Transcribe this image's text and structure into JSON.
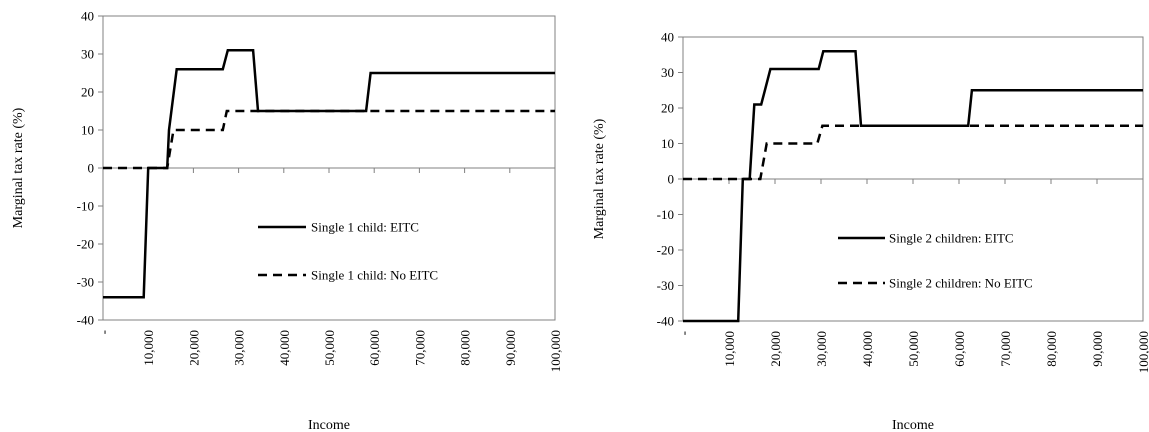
{
  "chart_data": [
    {
      "type": "line",
      "title": "",
      "xlabel": "Income",
      "ylabel": "Marginal tax rate (%)",
      "xlim": [
        0,
        100000
      ],
      "ylim": [
        -40,
        40
      ],
      "x_ticks": [
        0,
        10000,
        20000,
        30000,
        40000,
        50000,
        60000,
        70000,
        80000,
        90000,
        100000
      ],
      "x_tick_labels": [
        "-",
        "10,000",
        "20,000",
        "30,000",
        "40,000",
        "50,000",
        "60,000",
        "70,000",
        "80,000",
        "90,000",
        "100,000"
      ],
      "y_ticks": [
        40,
        30,
        20,
        10,
        0,
        -10,
        -20,
        -30,
        -40
      ],
      "y_tick_labels": [
        "40",
        "30",
        "20",
        "10",
        "0",
        "-10",
        "-20",
        "-30",
        "-40"
      ],
      "grid": false,
      "legend_position": "center-right",
      "series": [
        {
          "name": "Single 1 child: EITC",
          "style": "solid",
          "x": [
            0,
            9000,
            10000,
            14200,
            14600,
            16300,
            26500,
            27600,
            33200,
            34300,
            58200,
            59200,
            100000
          ],
          "y": [
            -34,
            -34,
            0,
            0,
            10,
            26,
            26,
            31,
            31,
            15,
            15,
            25,
            25
          ]
        },
        {
          "name": "Single 1 child: No EITC",
          "style": "dashed",
          "x": [
            0,
            8500,
            9200,
            14200,
            15600,
            26500,
            27400,
            100000
          ],
          "y": [
            0,
            0,
            0,
            0,
            10,
            10,
            15,
            15
          ]
        }
      ]
    },
    {
      "type": "line",
      "title": "",
      "xlabel": "Income",
      "ylabel": "Marginal tax rate (%)",
      "xlim": [
        0,
        100000
      ],
      "ylim": [
        -40,
        40
      ],
      "x_ticks": [
        0,
        10000,
        20000,
        30000,
        40000,
        50000,
        60000,
        70000,
        80000,
        90000,
        100000
      ],
      "x_tick_labels": [
        "-",
        "10,000",
        "20,000",
        "30,000",
        "40,000",
        "50,000",
        "60,000",
        "70,000",
        "80,000",
        "90,000",
        "100,000"
      ],
      "y_ticks": [
        40,
        30,
        20,
        10,
        0,
        -10,
        -20,
        -30,
        -40
      ],
      "y_tick_labels": [
        "40",
        "30",
        "20",
        "10",
        "0",
        "-10",
        "-20",
        "-30",
        "-40"
      ],
      "grid": false,
      "legend_position": "center-right",
      "series": [
        {
          "name": "Single 2 children: EITC",
          "style": "solid",
          "x": [
            0,
            12000,
            13000,
            14500,
            15500,
            17000,
            17800,
            19000,
            29500,
            30500,
            37500,
            38700,
            62000,
            62800,
            100000
          ],
          "y": [
            -40,
            -40,
            0,
            0,
            21,
            21,
            25,
            31,
            31,
            36,
            36,
            15,
            15,
            25,
            25
          ]
        },
        {
          "name": "Single 2 children: No EITC",
          "style": "dashed",
          "x": [
            0,
            16800,
            18200,
            29200,
            30300,
            37000,
            100000
          ],
          "y": [
            0,
            0,
            10,
            10,
            15,
            15,
            15
          ]
        }
      ]
    }
  ]
}
